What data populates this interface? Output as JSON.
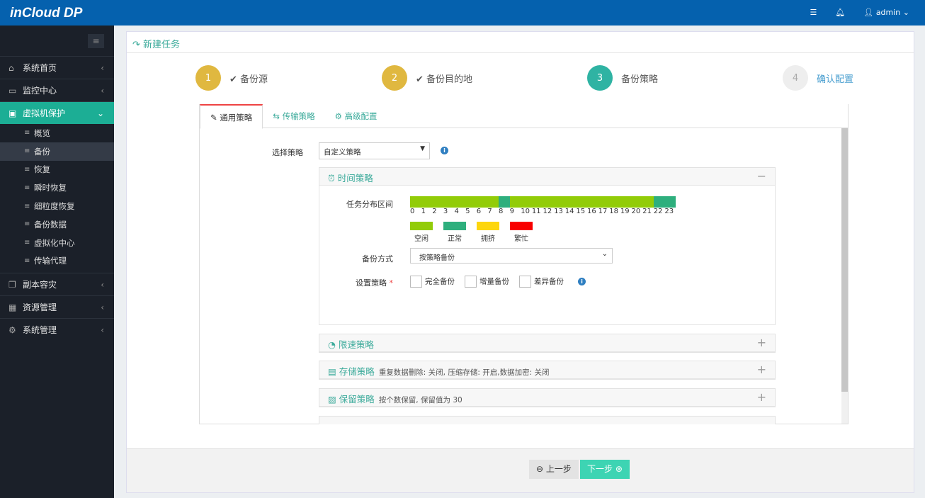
{
  "app": {
    "logo": "inCloud DP",
    "user": "admin"
  },
  "sidebar": {
    "items": [
      {
        "label": "系统首页",
        "icon": "home-icon"
      },
      {
        "label": "监控中心",
        "icon": "monitor-icon"
      },
      {
        "label": "虚拟机保护",
        "icon": "desktop-icon",
        "active": true
      },
      {
        "label": "副本容灾",
        "icon": "copy-icon"
      },
      {
        "label": "资源管理",
        "icon": "grid-icon"
      },
      {
        "label": "系统管理",
        "icon": "gear-icon"
      }
    ],
    "sub": [
      {
        "label": "概览"
      },
      {
        "label": "备份",
        "active": true
      },
      {
        "label": "恢复"
      },
      {
        "label": "瞬时恢复"
      },
      {
        "label": "细粒度恢复"
      },
      {
        "label": "备份数据"
      },
      {
        "label": "虚拟化中心"
      },
      {
        "label": "传输代理"
      }
    ]
  },
  "page": {
    "title": "新建任务"
  },
  "steps": [
    {
      "num": "1",
      "label": "备份源",
      "color": "#e0b840"
    },
    {
      "num": "2",
      "label": "备份目的地",
      "color": "#e0b840"
    },
    {
      "num": "3",
      "label": "备份策略",
      "color": "#2fb3a3"
    },
    {
      "num": "4",
      "label": "确认配置",
      "color": "#eeeeee"
    }
  ],
  "tabs": [
    "通用策略",
    "传输策略",
    "高级配置"
  ],
  "form": {
    "select_label": "选择策略",
    "select_value": "自定义策略",
    "time": {
      "title": "时间策略",
      "dist_label": "任务分布区间",
      "hours": [
        "0",
        "1",
        "2",
        "3",
        "4",
        "5",
        "6",
        "7",
        "8",
        "9",
        "10",
        "11",
        "12",
        "13",
        "14",
        "15",
        "16",
        "17",
        "18",
        "19",
        "20",
        "21",
        "22",
        "23"
      ],
      "hour_status": [
        "idle",
        "idle",
        "idle",
        "idle",
        "idle",
        "idle",
        "idle",
        "idle",
        "normal",
        "idle",
        "idle",
        "idle",
        "idle",
        "idle",
        "idle",
        "idle",
        "idle",
        "idle",
        "idle",
        "idle",
        "idle",
        "idle",
        "normal",
        "normal"
      ],
      "legend": [
        {
          "key": "idle",
          "label": "空闲",
          "color": "#92cc08"
        },
        {
          "key": "normal",
          "label": "正常",
          "color": "#2eaf7d"
        },
        {
          "key": "busy",
          "label": "拥挤",
          "color": "#fdd60e"
        },
        {
          "key": "full",
          "label": "繁忙",
          "color": "#f80000"
        }
      ],
      "mode_label": "备份方式",
      "mode_value": "按策略备份",
      "strategy_label": "设置策略",
      "options": [
        "完全备份",
        "增量备份",
        "差异备份"
      ]
    },
    "sections": [
      {
        "title": "限速策略",
        "desc": ""
      },
      {
        "title": "存储策略",
        "desc": "重复数据删除: 关闭, 压缩存储: 开启,数据加密: 关闭"
      },
      {
        "title": "保留策略",
        "desc": "按个数保留, 保留值为 30"
      }
    ]
  },
  "footer": {
    "prev": "上一步",
    "next": "下一步"
  }
}
